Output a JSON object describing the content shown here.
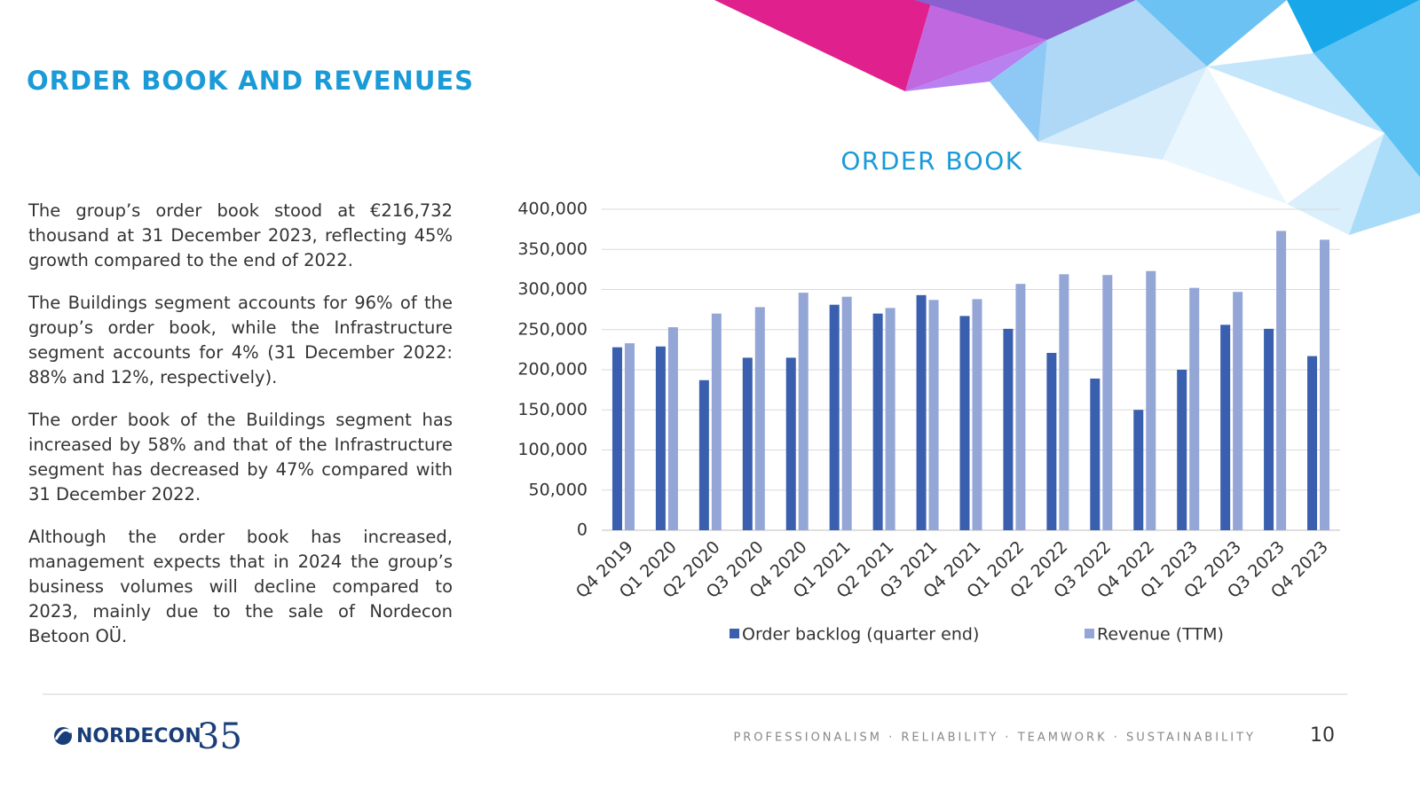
{
  "header": {
    "title": "ORDER BOOK AND REVENUES"
  },
  "paragraphs": [
    "The group’s order book stood at €216,732 thousand at 31 December 2023, reflecting 45% growth compared to the end of 2022.",
    "The Buildings segment accounts for 96% of the group’s order book, while the Infrastructure segment accounts for 4% (31 December 2022: 88% and 12%, respectively).",
    "The order book of the Buildings segment has increased by 58% and that of the Infrastructure segment has decreased by 47% compared with 31 December 2022.",
    "Although the order book has increased, management expects that in 2024 the group’s business volumes will decline compared to 2023, mainly due to the sale of Nordecon Betoon OÜ."
  ],
  "chart_data": {
    "type": "bar",
    "title": "ORDER BOOK",
    "categories": [
      "Q4 2019",
      "Q1 2020",
      "Q2 2020",
      "Q3 2020",
      "Q4 2020",
      "Q1 2021",
      "Q2 2021",
      "Q3 2021",
      "Q4 2021",
      "Q1 2022",
      "Q2 2022",
      "Q3 2022",
      "Q4 2022",
      "Q1 2023",
      "Q2 2023",
      "Q3 2023",
      "Q4 2023"
    ],
    "series": [
      {
        "name": "Order backlog (quarter end)",
        "color": "#3a5fae",
        "values": [
          228000,
          229000,
          187000,
          215000,
          215000,
          281000,
          270000,
          293000,
          267000,
          251000,
          221000,
          189000,
          150000,
          200000,
          256000,
          251000,
          217000
        ]
      },
      {
        "name": "Revenue (TTM)",
        "color": "#94a6d6",
        "values": [
          233000,
          253000,
          270000,
          278000,
          296000,
          291000,
          277000,
          287000,
          288000,
          307000,
          319000,
          318000,
          323000,
          302000,
          297000,
          373000,
          362000
        ]
      }
    ],
    "ylim": [
      0,
      400000
    ],
    "yticks": [
      0,
      {
        "value": 50000,
        "label": "50,000"
      },
      {
        "value": 100000,
        "label": "100,000"
      },
      {
        "value": 150000,
        "label": "150,000"
      },
      {
        "value": 200000,
        "label": "200,000"
      },
      {
        "value": 250000,
        "label": "250,000"
      },
      {
        "value": 300000,
        "label": "300,000"
      },
      {
        "value": 350000,
        "label": "350,000"
      },
      {
        "value": 400000,
        "label": "400,000"
      }
    ],
    "grid": true,
    "legend": "bottom"
  },
  "logo": {
    "name": "NORDECON",
    "number": "35"
  },
  "footer": {
    "tagline": "PROFESSIONALISM · RELIABILITY · TEAMWORK · SUSTAINABILITY",
    "page": "10"
  }
}
